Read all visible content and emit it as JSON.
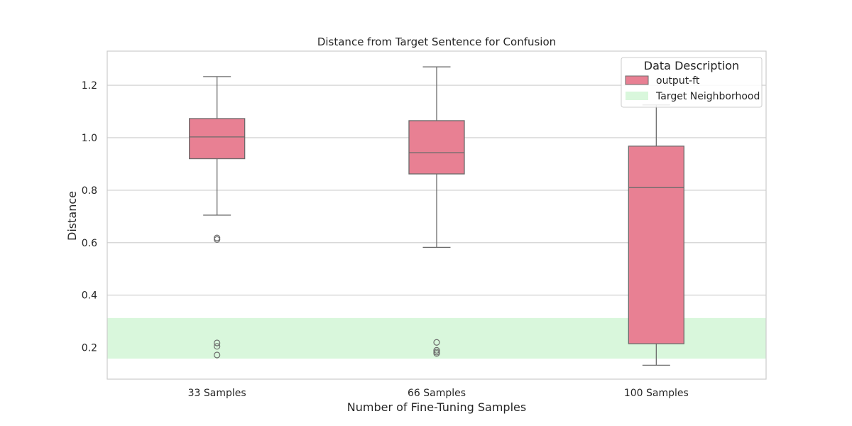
{
  "chart_data": {
    "type": "box",
    "title": "Distance from Target Sentence for Confusion",
    "xlabel": "Number of Fine-Tuning Samples",
    "ylabel": "Distance",
    "ylim": [
      0.08,
      1.33
    ],
    "yticks": [
      0.2,
      0.4,
      0.6,
      0.8,
      1.0,
      1.2
    ],
    "ytick_labels": [
      "0.2",
      "0.4",
      "0.6",
      "0.8",
      "1.0",
      "1.2"
    ],
    "grid": true,
    "categories": [
      "33 Samples",
      "66 Samples",
      "100 Samples"
    ],
    "series": [
      {
        "name": "output-ft",
        "color": "#e88093",
        "boxes": [
          {
            "whisker_low": 0.705,
            "q1": 0.92,
            "median": 1.003,
            "q3": 1.073,
            "whisker_high": 1.233,
            "outliers": [
              0.618,
              0.612,
              0.218,
              0.205,
              0.172
            ]
          },
          {
            "whisker_low": 0.582,
            "q1": 0.862,
            "median": 0.943,
            "q3": 1.065,
            "whisker_high": 1.27,
            "outliers": [
              0.22,
              0.19,
              0.183,
              0.178
            ]
          },
          {
            "whisker_low": 0.133,
            "q1": 0.215,
            "median": 0.81,
            "q3": 0.968,
            "whisker_high": 1.125,
            "outliers": []
          }
        ]
      }
    ],
    "band": {
      "name": "Target Neighborhood",
      "y0": 0.158,
      "y1": 0.313,
      "color": "#d9f7dc"
    },
    "legend": {
      "title": "Data Description",
      "placement": "top-right",
      "entries": [
        "output-ft",
        "Target Neighborhood"
      ]
    }
  }
}
